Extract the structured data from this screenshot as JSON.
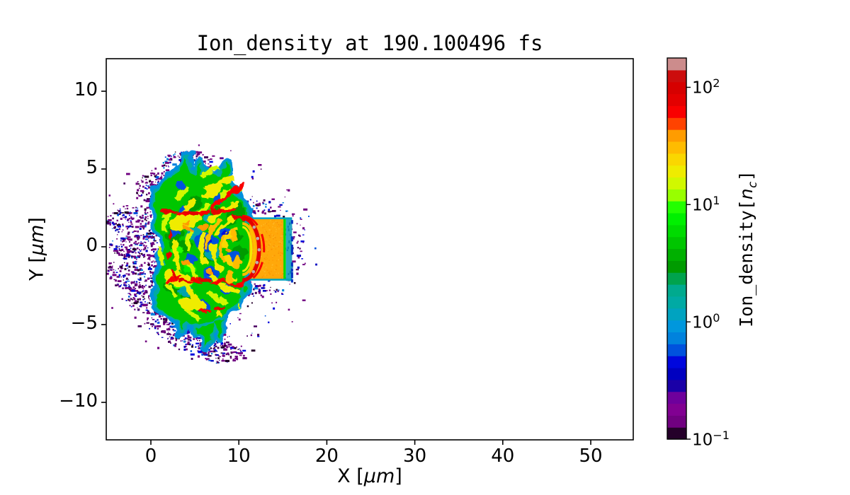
{
  "title": {
    "text": "Ion_density at 190.100496 fs"
  },
  "axes": {
    "x": {
      "label_pre": "X [",
      "label_unit": "μm",
      "label_post": "]",
      "ticks": [
        {
          "v": 0,
          "label": "0"
        },
        {
          "v": 10,
          "label": "10"
        },
        {
          "v": 20,
          "label": "20"
        },
        {
          "v": 30,
          "label": "30"
        },
        {
          "v": 40,
          "label": "40"
        },
        {
          "v": 50,
          "label": "50"
        }
      ]
    },
    "y": {
      "label_pre": "Y [",
      "label_unit": "μm",
      "label_post": "]",
      "ticks": [
        {
          "v": 10,
          "label": "10"
        },
        {
          "v": 5,
          "label": "5"
        },
        {
          "v": 0,
          "label": "0"
        },
        {
          "v": -5,
          "label": "−5"
        },
        {
          "v": -10,
          "label": "−10"
        }
      ]
    }
  },
  "colorbar": {
    "label_pre": "Ion_density[",
    "label_var": "n",
    "label_sub": "c",
    "label_post": "]",
    "ticks": [
      {
        "exp_value": 2,
        "base": "10",
        "exp": "2"
      },
      {
        "exp_value": 1,
        "base": "10",
        "exp": "1"
      },
      {
        "exp_value": 0,
        "base": "10",
        "exp": "0"
      },
      {
        "exp_value": -1,
        "base": "10",
        "exp": "−1"
      }
    ],
    "log_min_exp": -1,
    "log_max_exp": 2.25,
    "n_bands": 32,
    "band_colors_bottom_to_top": [
      "#25002A",
      "#700080",
      "#810092",
      "#6E009C",
      "#1A00A7",
      "#0000C0",
      "#0007DD",
      "#0052DD",
      "#0082DD",
      "#0097DD",
      "#00A3C0",
      "#00AAA4",
      "#00AA8E",
      "#00A34D",
      "#009B00",
      "#00B000",
      "#00C600",
      "#00DB00",
      "#00F000",
      "#23FF00",
      "#98FF00",
      "#D1F800",
      "#EFEC00",
      "#FAD700",
      "#FFBC00",
      "#FF9C00",
      "#FF4300",
      "#F90000",
      "#E30000",
      "#D60000",
      "#CC0D0D",
      "#CC8C8C"
    ]
  },
  "chart_data": {
    "type": "heatmap",
    "title": "Ion_density at 190.100496 fs",
    "xlabel": "X [μm]",
    "ylabel": "Y [μm]",
    "xlim": [
      -5.1,
      54.9
    ],
    "ylim": [
      -12.4,
      12.1
    ],
    "color_scale": "log",
    "clim_nc": [
      0.1,
      178
    ],
    "colormap": "nipy_spectral, discretized into 32 bands",
    "colorbar_label": "Ion_density[n_c]",
    "colorbar_ticks_nc": [
      0.1,
      1,
      10,
      100
    ],
    "background_value": "white (below 0.1 n_c / vacuum)",
    "features": {
      "target_slab": {
        "desc": "solid target block, ~40 n_c (orange)",
        "x0_um": 11.2,
        "x1_um": 15.1,
        "y0_um": -2.1,
        "y1_um": 1.8,
        "color": "#FFA80A"
      },
      "rear_strip": {
        "desc": "lower-density rear coating, ~1 n_c (teal)",
        "x0_um": 15.35,
        "x1_um": 16.05,
        "y0_um": -2.1,
        "y1_um": 1.8,
        "color": "#29A5C4"
      },
      "front_edge_line": {
        "desc": "thin ~5-10 n_c green line between slab and rear strip",
        "x_um": 15.2,
        "color": "#00DB00"
      },
      "shock_front": {
        "desc": "dense curved shock/compression front, ~100 n_c (red crescent) bulging into the target",
        "cx_um": 10.4,
        "cy_um": -0.15,
        "rx_um": 1.9,
        "ry_um": 2.0,
        "color": "#E30000"
      },
      "plasma_plume": {
        "desc": "turbulent expanding blow-off plasma, 2-30 n_c (green/yellow body with blue cavities, yellow concentric ripples and red filaments)",
        "x_min_um": 0.2,
        "x_max_um": 10.6,
        "y_min_um": -7.3,
        "y_max_um": 6.4,
        "core_colors": [
          "#00C600",
          "#009B00",
          "#EFEC00",
          "#0052DD",
          "#F90000"
        ]
      },
      "ripple_center_um": [
        10.8,
        -0.1
      ],
      "fringe": {
        "desc": "speckled low-density halo, 0.1-0.7 n_c (purple/blue dots) reaching x ≈ -5 μm",
        "x_min_um": -5.1,
        "x_max_um": 17.5,
        "y_min_um": -9.5,
        "y_max_um": 7.5,
        "colors": [
          "#700080",
          "#25002A",
          "#0000C0",
          "#0007DD"
        ]
      }
    }
  }
}
